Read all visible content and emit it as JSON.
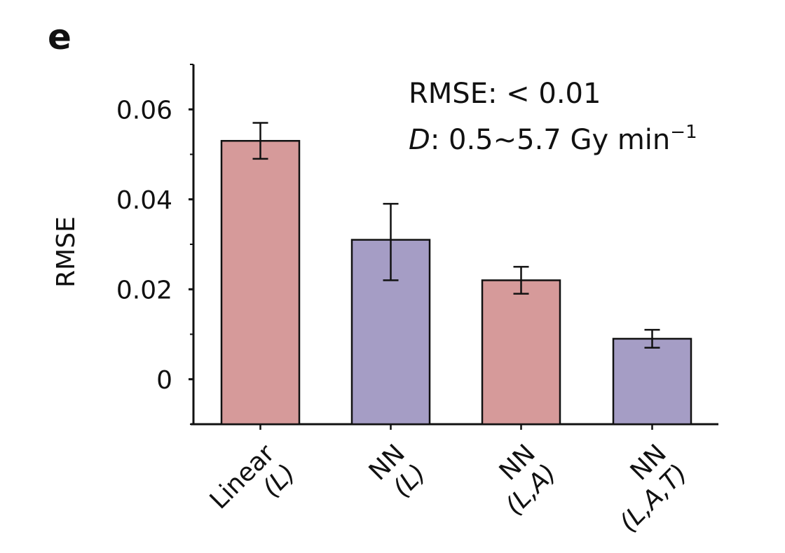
{
  "panel_label": "e",
  "chart_data": {
    "type": "bar",
    "title": "",
    "xlabel": "",
    "ylabel": "RMSE",
    "ylim": [
      -0.01,
      0.07
    ],
    "yticks": [
      {
        "value": 0,
        "label": "0"
      },
      {
        "value": 0.02,
        "label": "0.02"
      },
      {
        "value": 0.04,
        "label": "0.04"
      },
      {
        "value": 0.06,
        "label": "0.06"
      }
    ],
    "categories": [
      {
        "line1": "Linear",
        "line2": "(L)"
      },
      {
        "line1": "NN",
        "line2": "(L)"
      },
      {
        "line1": "NN",
        "line2": "(L,A)"
      },
      {
        "line1": "NN",
        "line2": "(L,A,T)"
      }
    ],
    "values": [
      0.053,
      0.031,
      0.022,
      0.009
    ],
    "error_low": [
      0.049,
      0.022,
      0.019,
      0.007
    ],
    "error_high": [
      0.057,
      0.039,
      0.025,
      0.011
    ],
    "bar_colors": [
      "#d69a9a",
      "#a59dc5",
      "#d69a9a",
      "#a59dc5"
    ],
    "annotations": {
      "line1": "RMSE: < 0.01",
      "line2_var": "D",
      "line2_text": ": 0.5~5.7 Gy min",
      "line2_sup": "−1"
    },
    "grid": false,
    "legend": "none"
  }
}
